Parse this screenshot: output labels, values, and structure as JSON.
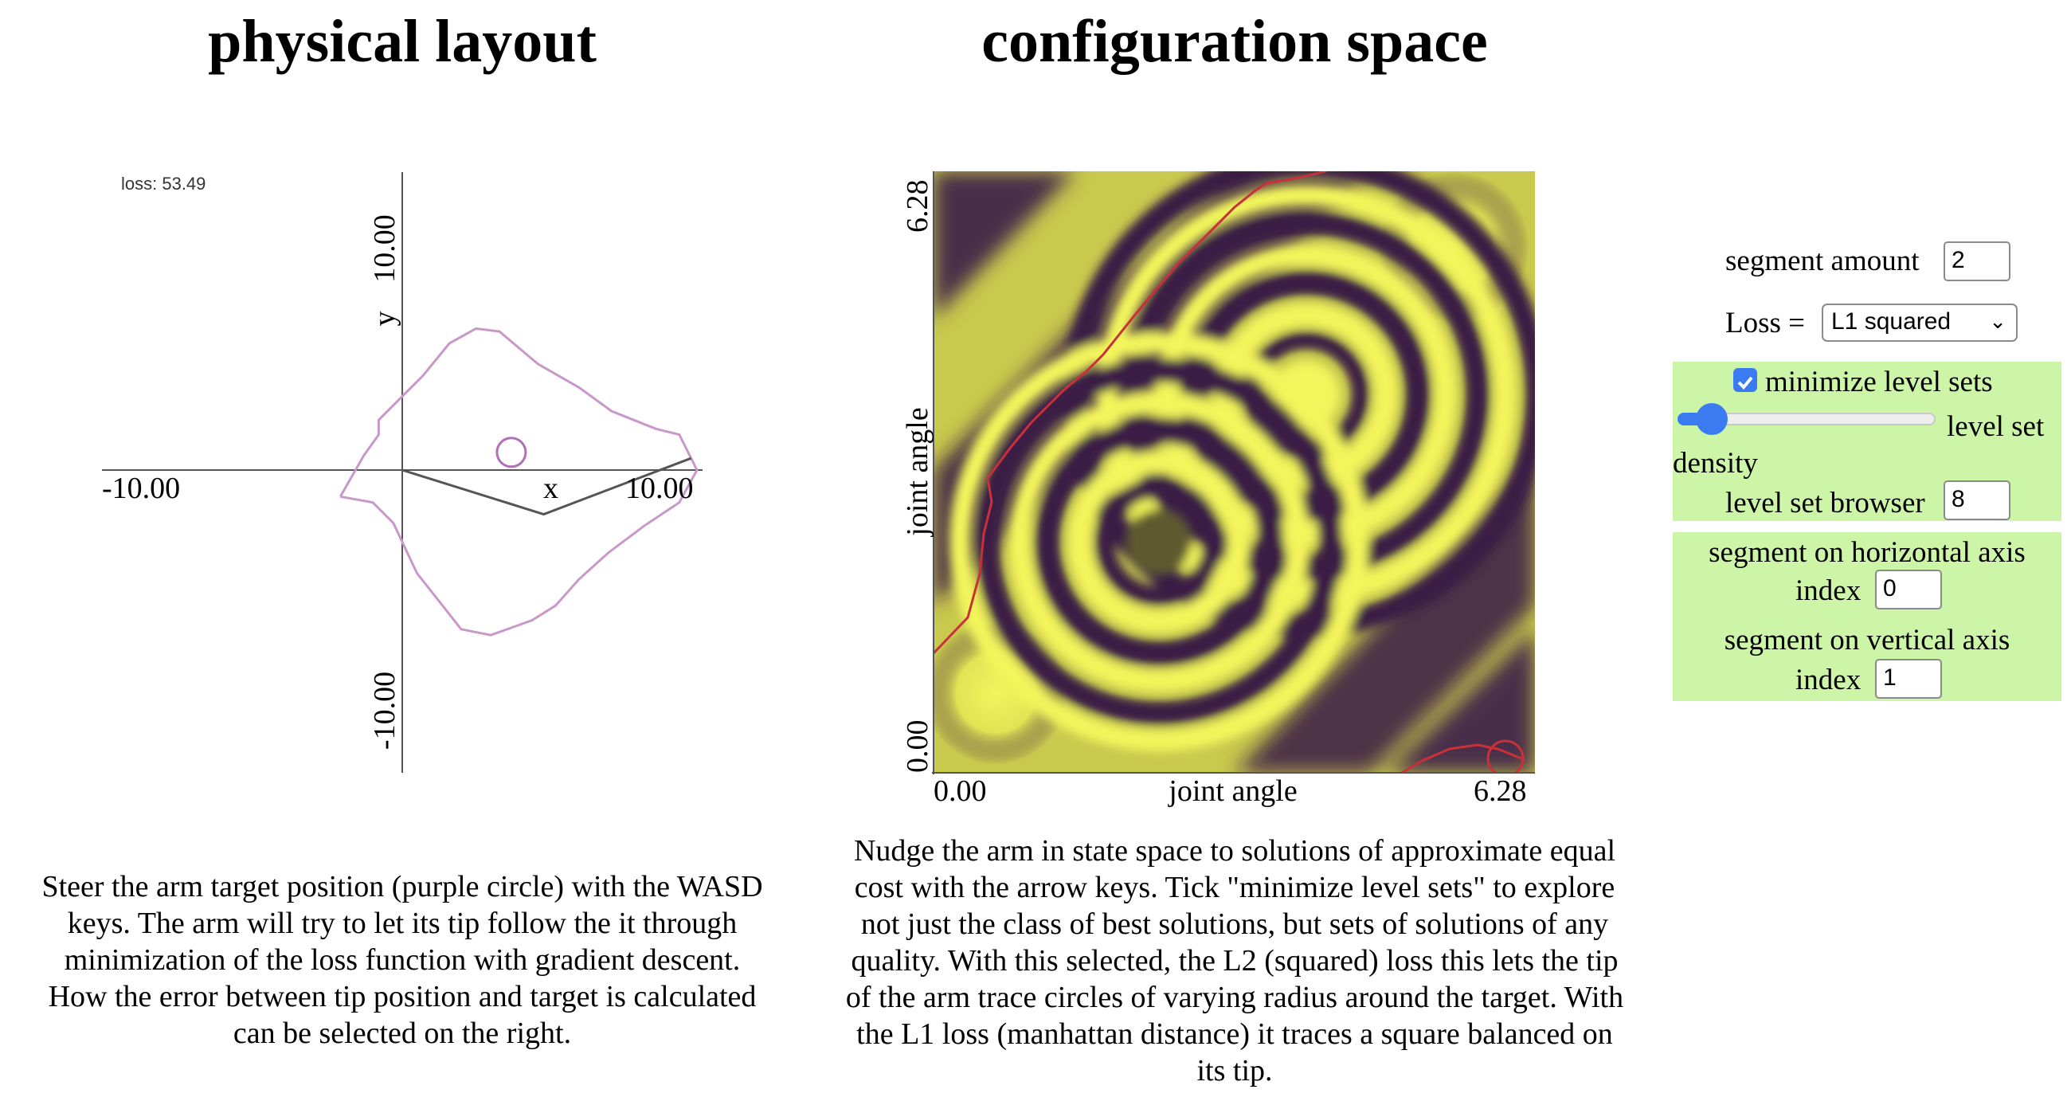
{
  "headings": {
    "physical": "physical layout",
    "config": "configuration space"
  },
  "physical_plot": {
    "loss_label": "loss: 53.49",
    "x_axis_label": "x",
    "y_axis_label": "y",
    "x_min_label": "-10.00",
    "x_max_label": "10.00",
    "y_min_label": "-10.00",
    "y_max_label": "10.00",
    "reachable_color": "#c898c8",
    "arm_color": "#555555",
    "target_color": "#b070b8",
    "arm_points_data_units": [
      [
        0,
        0
      ],
      [
        4.8,
        -1.5
      ],
      [
        9.8,
        0.4
      ]
    ],
    "target_data_units": [
      3.7,
      0.6
    ]
  },
  "config_plot": {
    "x_axis_label": "joint angle",
    "y_axis_label": "joint angle",
    "x_min_label": "0.00",
    "x_max_label": "6.28",
    "y_min_label": "0.00",
    "y_max_label": "6.28",
    "dark_color": "#3a1a44",
    "bright_color": "#f3f55c",
    "path_color": "#c8303a"
  },
  "captions": {
    "physical": "Steer the arm target position (purple circle) with the WASD keys. The arm will try to let its tip follow the it through minimization of the loss function with gradient descent. How the error between tip position and target is calculated can be selected on the right.",
    "config": "Nudge the arm in state space to solutions of approximate equal cost with the arrow keys. Tick \"minimize level sets\" to explore not just the class of best solutions, but sets of solutions of any quality. With this selected, the L2 (squared) loss this lets the tip of the arm trace circles of varying radius around the target. With the L1 loss (manhattan distance) it traces a square balanced on its tip."
  },
  "controls": {
    "segment_amount_label": "segment amount",
    "segment_amount_value": "2",
    "loss_label": "Loss =",
    "loss_selected": "L1 squared",
    "minimize_label": "minimize level sets",
    "minimize_checked": true,
    "level_set_density_label_a": "level set",
    "level_set_density_label_b": "density",
    "level_set_density_fraction": 0.08,
    "level_set_browser_label": "level set browser",
    "level_set_browser_value": "8",
    "horizontal_axis_label": "segment on horizontal axis",
    "horizontal_index_label": "index",
    "horizontal_index_value": "0",
    "vertical_axis_label": "segment on vertical axis",
    "vertical_index_label": "index",
    "vertical_index_value": "1",
    "panel_color": "#ccf5a8",
    "accent_color": "#3b7bf2"
  }
}
